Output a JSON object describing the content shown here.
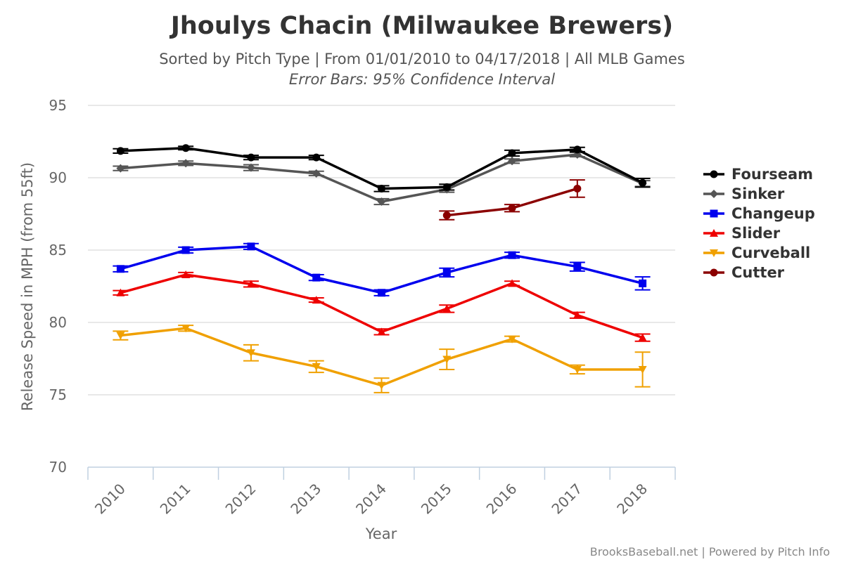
{
  "chart_data": {
    "type": "line",
    "title": "Jhoulys Chacin (Milwaukee Brewers)",
    "subtitle": "Sorted by Pitch Type | From 01/01/2010 to 04/17/2018 | All MLB Games",
    "subtitle2": "Error Bars: 95% Confidence Interval",
    "xlabel": "Year",
    "ylabel": "Release Speed in MPH (from 55ft)",
    "categories": [
      "2010",
      "2011",
      "2012",
      "2013",
      "2014",
      "2015",
      "2016",
      "2017",
      "2018"
    ],
    "yticks": [
      "70",
      "75",
      "80",
      "85",
      "90",
      "95"
    ],
    "ylim": [
      70,
      95
    ],
    "grid": true,
    "legend_position": "right",
    "credit": "BrooksBaseball.net | Powered by Pitch Info",
    "series": [
      {
        "name": "Fourseam",
        "color": "#000000",
        "marker": "circle",
        "values": [
          91.85,
          92.05,
          91.4,
          91.4,
          89.25,
          89.35,
          91.7,
          91.95,
          89.65
        ],
        "err": [
          0.15,
          0.12,
          0.15,
          0.15,
          0.2,
          0.2,
          0.2,
          0.15,
          0.3
        ]
      },
      {
        "name": "Sinker",
        "color": "#555555",
        "marker": "diamond",
        "values": [
          90.65,
          91.0,
          90.7,
          90.3,
          88.35,
          89.2,
          91.15,
          91.6,
          89.6
        ],
        "err": [
          0.15,
          0.15,
          0.2,
          0.15,
          0.2,
          0.2,
          0.15,
          0.15,
          0.2
        ]
      },
      {
        "name": "Changeup",
        "color": "#0000ee",
        "marker": "square",
        "values": [
          83.7,
          85.0,
          85.25,
          83.1,
          82.05,
          83.45,
          84.65,
          83.85,
          82.7
        ],
        "err": [
          0.2,
          0.2,
          0.2,
          0.2,
          0.2,
          0.3,
          0.2,
          0.3,
          0.45
        ]
      },
      {
        "name": "Slider",
        "color": "#ee0000",
        "marker": "triangle",
        "values": [
          82.05,
          83.3,
          82.65,
          81.55,
          79.35,
          80.95,
          82.7,
          80.5,
          78.95
        ],
        "err": [
          0.15,
          0.15,
          0.2,
          0.15,
          0.2,
          0.25,
          0.15,
          0.2,
          0.25
        ]
      },
      {
        "name": "Curveball",
        "color": "#f0a000",
        "marker": "triangle-down",
        "values": [
          79.1,
          79.6,
          77.9,
          76.95,
          75.65,
          77.45,
          78.85,
          76.75,
          76.75
        ],
        "err": [
          0.3,
          0.2,
          0.55,
          0.4,
          0.5,
          0.7,
          0.2,
          0.3,
          1.2
        ]
      },
      {
        "name": "Cutter",
        "color": "#8b0000",
        "marker": "circle",
        "values": [
          null,
          null,
          null,
          null,
          null,
          87.4,
          87.9,
          89.25,
          null
        ],
        "err": [
          null,
          null,
          null,
          null,
          null,
          0.3,
          0.25,
          0.6,
          null
        ]
      }
    ]
  }
}
